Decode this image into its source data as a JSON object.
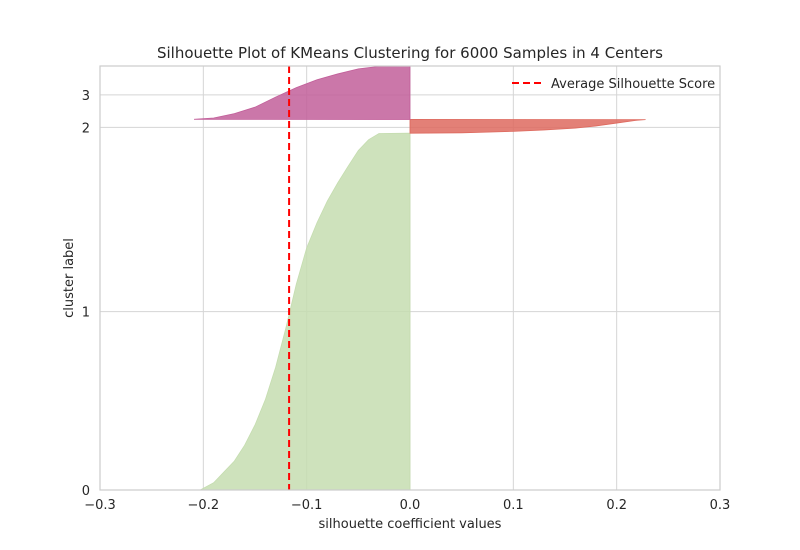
{
  "chart_data": {
    "type": "area",
    "title": "Silhouette Plot of KMeans Clustering for 6000 Samples in 4 Centers",
    "xlabel": "silhouette coefficient values",
    "ylabel": "cluster label",
    "xlim": [
      -0.3,
      0.3
    ],
    "ylim": [
      0,
      5870
    ],
    "x_ticks": [
      "−0.3",
      "−0.2",
      "−0.1",
      "0.0",
      "0.1",
      "0.2",
      "0.3"
    ],
    "x_tick_values": [
      -0.3,
      -0.2,
      -0.1,
      0.0,
      0.1,
      0.2,
      0.3
    ],
    "y_ticks": [
      "0",
      "1",
      "2",
      "3"
    ],
    "y_tick_values": [
      0,
      2470,
      5020,
      5470
    ],
    "grid": true,
    "legend": {
      "placement": "top-right",
      "entries": [
        "Average Silhouette Score"
      ]
    },
    "average_silhouette_score": -0.117,
    "average_line_color": "#ff0000",
    "clusters": [
      {
        "label": "0",
        "y_start": 0,
        "y_end": 4940,
        "color": "#c5ddb0",
        "profile": [
          [
            -0.203,
            0
          ],
          [
            -0.19,
            100
          ],
          [
            -0.18,
            250
          ],
          [
            -0.17,
            400
          ],
          [
            -0.16,
            620
          ],
          [
            -0.15,
            900
          ],
          [
            -0.14,
            1250
          ],
          [
            -0.13,
            1700
          ],
          [
            -0.12,
            2250
          ],
          [
            -0.11,
            2850
          ],
          [
            -0.1,
            3350
          ],
          [
            -0.09,
            3700
          ],
          [
            -0.08,
            4000
          ],
          [
            -0.07,
            4250
          ],
          [
            -0.06,
            4480
          ],
          [
            -0.05,
            4700
          ],
          [
            -0.04,
            4850
          ],
          [
            -0.03,
            4935
          ],
          [
            0.0,
            4940
          ]
        ]
      },
      {
        "label": "1",
        "y_start": 4940,
        "y_end": 5130,
        "color": "#de6a5f",
        "profile": [
          [
            0.0,
            4940
          ],
          [
            0.05,
            4945
          ],
          [
            0.1,
            4965
          ],
          [
            0.13,
            4985
          ],
          [
            0.16,
            5010
          ],
          [
            0.18,
            5040
          ],
          [
            0.2,
            5080
          ],
          [
            0.22,
            5120
          ],
          [
            0.228,
            5128
          ]
        ]
      },
      {
        "label": "2",
        "y_start": 5130,
        "y_end": 5870,
        "color": "#c25f9a",
        "profile": [
          [
            -0.209,
            5132
          ],
          [
            -0.19,
            5150
          ],
          [
            -0.17,
            5210
          ],
          [
            -0.15,
            5300
          ],
          [
            -0.13,
            5440
          ],
          [
            -0.11,
            5570
          ],
          [
            -0.09,
            5680
          ],
          [
            -0.07,
            5760
          ],
          [
            -0.05,
            5830
          ],
          [
            -0.03,
            5865
          ],
          [
            0.0,
            5870
          ]
        ]
      }
    ]
  }
}
